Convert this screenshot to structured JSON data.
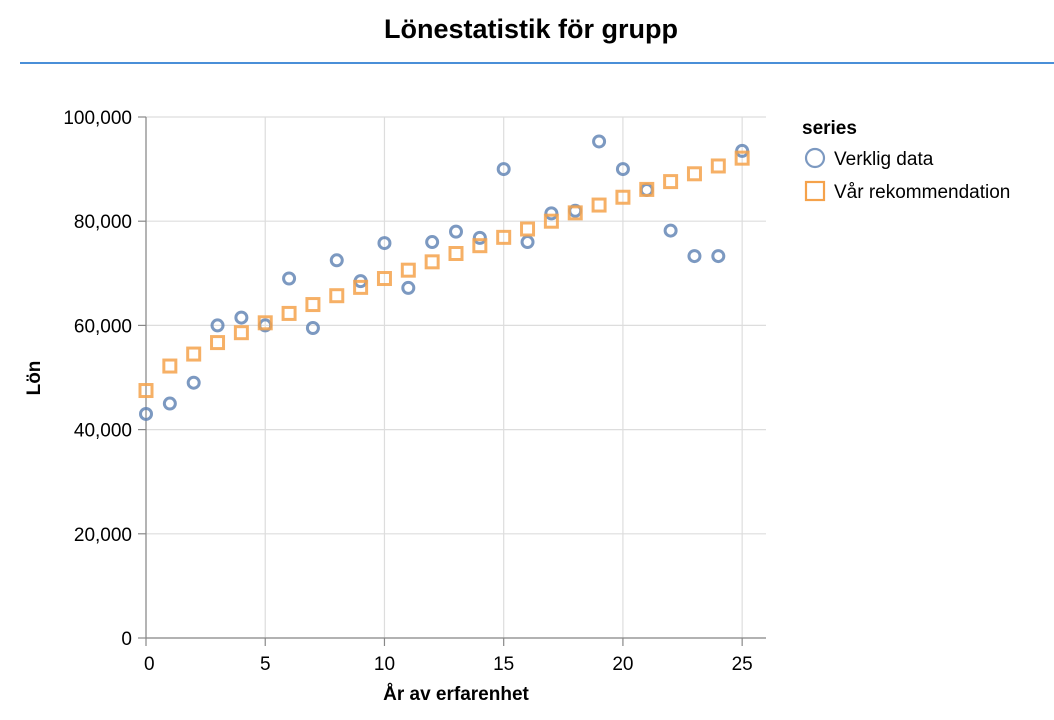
{
  "page": {
    "title": "Lönestatistik för grupp"
  },
  "chart_data": {
    "type": "scatter",
    "title": "Lönestatistik för grupp",
    "xlabel": "År av erfarenhet",
    "ylabel": "Lön",
    "xlim": [
      0,
      26
    ],
    "ylim": [
      0,
      100000
    ],
    "x_ticks": [
      0,
      5,
      10,
      15,
      20,
      25
    ],
    "x_tick_labels": [
      "0",
      "5",
      "10",
      "15",
      "20",
      "25"
    ],
    "y_ticks": [
      0,
      20000,
      40000,
      60000,
      80000,
      100000
    ],
    "y_tick_labels": [
      "0",
      "20,000",
      "40,000",
      "60,000",
      "80,000",
      "100,000"
    ],
    "grid": true,
    "legend": {
      "title": "series",
      "placement": "right"
    },
    "series": [
      {
        "name": "Verklig data",
        "marker": "circle",
        "color": "#5b80b2",
        "points": [
          {
            "x": 0,
            "y": 43000
          },
          {
            "x": 1,
            "y": 45000
          },
          {
            "x": 2,
            "y": 49000
          },
          {
            "x": 3,
            "y": 60000
          },
          {
            "x": 4,
            "y": 61500
          },
          {
            "x": 5,
            "y": 60000
          },
          {
            "x": 6,
            "y": 69000
          },
          {
            "x": 7,
            "y": 59500
          },
          {
            "x": 8,
            "y": 72500
          },
          {
            "x": 9,
            "y": 68500
          },
          {
            "x": 10,
            "y": 75800
          },
          {
            "x": 11,
            "y": 67200
          },
          {
            "x": 12,
            "y": 76000
          },
          {
            "x": 13,
            "y": 78000
          },
          {
            "x": 14,
            "y": 76800
          },
          {
            "x": 15,
            "y": 90000
          },
          {
            "x": 16,
            "y": 76000
          },
          {
            "x": 17,
            "y": 81500
          },
          {
            "x": 18,
            "y": 82000
          },
          {
            "x": 19,
            "y": 95300
          },
          {
            "x": 20,
            "y": 90000
          },
          {
            "x": 21,
            "y": 86000
          },
          {
            "x": 22,
            "y": 78200
          },
          {
            "x": 23,
            "y": 73300
          },
          {
            "x": 24,
            "y": 73300
          },
          {
            "x": 25,
            "y": 93500
          }
        ]
      },
      {
        "name": "Vår rekommendation",
        "marker": "square",
        "color": "#f5a24b",
        "points": [
          {
            "x": 0,
            "y": 47500
          },
          {
            "x": 1,
            "y": 52200
          },
          {
            "x": 2,
            "y": 54500
          },
          {
            "x": 3,
            "y": 56700
          },
          {
            "x": 4,
            "y": 58600
          },
          {
            "x": 5,
            "y": 60500
          },
          {
            "x": 6,
            "y": 62300
          },
          {
            "x": 7,
            "y": 64000
          },
          {
            "x": 8,
            "y": 65700
          },
          {
            "x": 9,
            "y": 67300
          },
          {
            "x": 10,
            "y": 69000
          },
          {
            "x": 11,
            "y": 70600
          },
          {
            "x": 12,
            "y": 72200
          },
          {
            "x": 13,
            "y": 73800
          },
          {
            "x": 14,
            "y": 75300
          },
          {
            "x": 15,
            "y": 76900
          },
          {
            "x": 16,
            "y": 78500
          },
          {
            "x": 17,
            "y": 80000
          },
          {
            "x": 18,
            "y": 81600
          },
          {
            "x": 19,
            "y": 83100
          },
          {
            "x": 20,
            "y": 84600
          },
          {
            "x": 21,
            "y": 86100
          },
          {
            "x": 22,
            "y": 87600
          },
          {
            "x": 23,
            "y": 89100
          },
          {
            "x": 24,
            "y": 90600
          },
          {
            "x": 25,
            "y": 92100
          }
        ]
      }
    ]
  }
}
